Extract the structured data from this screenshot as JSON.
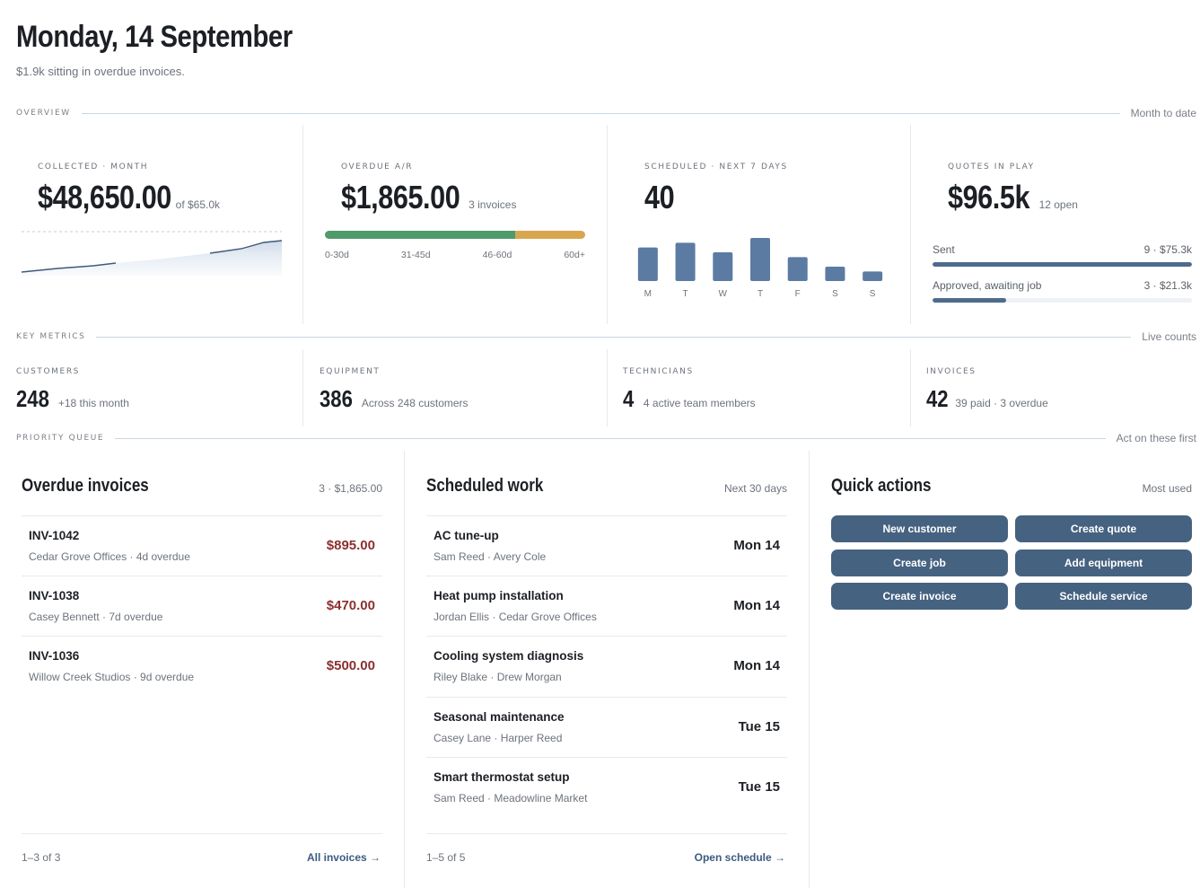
{
  "header": {
    "title": "Monday, 14 September",
    "subtitle": "$1.9k sitting in overdue invoices."
  },
  "sections": {
    "overview": {
      "label": "OVERVIEW",
      "right": "Month to date"
    },
    "key_metrics": {
      "label": "KEY METRICS",
      "right": "Live counts"
    },
    "priority_queue": {
      "label": "PRIORITY QUEUE",
      "right": "Act on these first"
    }
  },
  "overview": {
    "collected": {
      "label": "COLLECTED · MONTH",
      "value": "$48,650.00",
      "note": "of $65.0k",
      "target_fraction": 0.748
    },
    "overdue": {
      "label": "OVERDUE A/R",
      "value": "$1,865.00",
      "note": "3 invoices",
      "buckets": [
        "0-30d",
        "31-45d",
        "46-60d",
        "60d+"
      ],
      "green_fraction": 0.73,
      "colors": {
        "current": "#4f9a6b",
        "late": "#d9a650"
      }
    },
    "scheduled": {
      "label": "SCHEDULED · NEXT 7 DAYS",
      "value": "40",
      "days": [
        "M",
        "T",
        "W",
        "T",
        "F",
        "S",
        "S"
      ],
      "counts": [
        7,
        8,
        6,
        9,
        5,
        3,
        2
      ],
      "color": "#5b7ba3"
    },
    "quotes": {
      "label": "QUOTES IN PLAY",
      "value": "$96.5k",
      "note": "12 open",
      "rows": [
        {
          "label": "Sent",
          "meta": "9 · $75.3k",
          "fraction": 1.0
        },
        {
          "label": "Approved, awaiting job",
          "meta": "3 · $21.3k",
          "fraction": 0.283
        }
      ]
    }
  },
  "key_metrics": [
    {
      "label": "CUSTOMERS",
      "value": "248",
      "note": "+18 this month"
    },
    {
      "label": "EQUIPMENT",
      "value": "386",
      "note": "Across 248 customers"
    },
    {
      "label": "TECHNICIANS",
      "value": "4",
      "note": "4 active team members"
    },
    {
      "label": "INVOICES",
      "value": "42",
      "note": "39 paid · 3 overdue"
    }
  ],
  "overdue_invoices": {
    "title": "Overdue invoices",
    "note": "3 · $1,865.00",
    "rows": [
      {
        "id": "INV-1042",
        "meta": "Cedar Grove Offices · 4d overdue",
        "amount": "$895.00"
      },
      {
        "id": "INV-1038",
        "meta": "Casey Bennett · 7d overdue",
        "amount": "$470.00"
      },
      {
        "id": "INV-1036",
        "meta": "Willow Creek Studios · 9d overdue",
        "amount": "$500.00"
      }
    ],
    "pager": "1–3 of 3",
    "link": "All invoices →"
  },
  "scheduled_work": {
    "title": "Scheduled work",
    "note": "Next 30 days",
    "rows": [
      {
        "job": "AC tune-up",
        "meta": "Sam Reed · Avery Cole",
        "date": "Mon 14"
      },
      {
        "job": "Heat pump installation",
        "meta": "Jordan Ellis · Cedar Grove Offices",
        "date": "Mon 14"
      },
      {
        "job": "Cooling system diagnosis",
        "meta": "Riley Blake · Drew Morgan",
        "date": "Mon 14"
      },
      {
        "job": "Seasonal maintenance",
        "meta": "Casey Lane · Harper Reed",
        "date": "Tue 15"
      },
      {
        "job": "Smart thermostat setup",
        "meta": "Sam Reed · Meadowline Market",
        "date": "Tue 15"
      }
    ],
    "pager": "1–5 of 5",
    "link": "Open schedule →"
  },
  "quick_actions": {
    "title": "Quick actions",
    "note": "Most used",
    "buttons": [
      "New customer",
      "Create quote",
      "Create job",
      "Add equipment",
      "Create invoice",
      "Schedule service"
    ]
  }
}
